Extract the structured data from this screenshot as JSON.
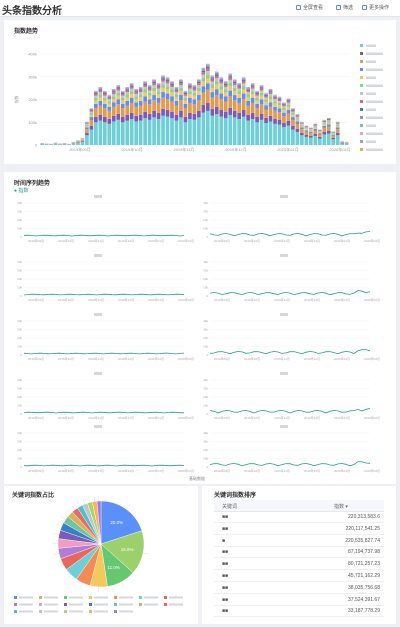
{
  "app": {
    "title": "头条指数分析"
  },
  "toolbar": {
    "save_label": "全屏查看",
    "filter_label": "筛选",
    "more_label": "更多操作"
  },
  "panel1": {
    "title": "指数趋势"
  },
  "panel2": {
    "title": "时间序列趋势",
    "legend_label": "指数",
    "footnote": "基础数据"
  },
  "panel3": {
    "title": "关键词指数占比"
  },
  "panel4": {
    "title": "关键词指数排序",
    "col_keyword": "关键词",
    "col_value": "指数"
  },
  "colors": {
    "accent": "#5b8ff9",
    "line": "#2a9d8f",
    "header_bg": "#ffffff",
    "page_bg": "#eef0f3"
  },
  "chart_data": [
    {
      "type": "bar",
      "title": "指数趋势",
      "ylabel": "指数",
      "y_ticks": [
        "0",
        "100k",
        "200k",
        "300k",
        "400k"
      ],
      "x_ticks": [
        "2019年09月",
        "2019年10月",
        "2019年11月",
        "2019年12月",
        "2020年01月",
        "2020年02月"
      ],
      "series_colors": [
        "#6fcfd6",
        "#7a5bb8",
        "#e39b4f",
        "#5b8ff9",
        "#f5c76a",
        "#8fd18b",
        "#c0c6cf",
        "#e36b6b",
        "#3a7fbf",
        "#b07ed9",
        "#73c2a1",
        "#f09ec0",
        "#9aa5b1",
        "#d8b25a"
      ],
      "stack_values": [
        5,
        4,
        3,
        6,
        4,
        5,
        3,
        8,
        12,
        18,
        60,
        95,
        140,
        150,
        140,
        130,
        145,
        155,
        140,
        150,
        160,
        145,
        150,
        165,
        155,
        170,
        160,
        180,
        175,
        165,
        150,
        170,
        140,
        160,
        155,
        170,
        200,
        210,
        180,
        190,
        175,
        165,
        185,
        170,
        160,
        175,
        150,
        160,
        140,
        155,
        135,
        145,
        130,
        125,
        110,
        120,
        95,
        80,
        60,
        50,
        45,
        55,
        40,
        65,
        70,
        35,
        60,
        10,
        8
      ]
    },
    {
      "type": "line",
      "title": "时间序列趋势",
      "small_multiples": 10,
      "y_ticks": [
        "0",
        "10k",
        "20k",
        "30k",
        "40k"
      ],
      "x_ticks": [
        "2019年09月",
        "2019年10月",
        "2019年11月",
        "2019年12月",
        "2020年01月",
        "2020年02月"
      ]
    },
    {
      "type": "pie",
      "title": "关键词指数占比",
      "slices": [
        {
          "value": 20.0,
          "color": "#5b8ff9",
          "label": "20.0%"
        },
        {
          "value": 16.6,
          "color": "#9bd06a",
          "label": "16.6%"
        },
        {
          "value": 11.0,
          "color": "#65c76f",
          "label": "11.0%"
        },
        {
          "value": 6.5,
          "color": "#f5c85b",
          "label": ""
        },
        {
          "value": 5.6,
          "color": "#f28b54",
          "label": ""
        },
        {
          "value": 5.2,
          "color": "#6fcfd6",
          "label": ""
        },
        {
          "value": 4.5,
          "color": "#e8685e",
          "label": ""
        },
        {
          "value": 4.0,
          "color": "#b07ed9",
          "label": ""
        },
        {
          "value": 3.6,
          "color": "#f09ec0",
          "label": ""
        },
        {
          "value": 3.2,
          "color": "#7a5bb8",
          "label": ""
        },
        {
          "value": 3.0,
          "color": "#3a7fbf",
          "label": ""
        },
        {
          "value": 2.8,
          "color": "#73c2a1",
          "label": ""
        },
        {
          "value": 2.5,
          "color": "#d8b25a",
          "label": ""
        },
        {
          "value": 2.3,
          "color": "#e36b6b",
          "label": ""
        },
        {
          "value": 2.1,
          "color": "#4ec0c6",
          "label": ""
        },
        {
          "value": 2.0,
          "color": "#c0c6cf",
          "label": ""
        },
        {
          "value": 1.9,
          "color": "#a6d96a",
          "label": ""
        },
        {
          "value": 1.7,
          "color": "#fdae61",
          "label": ""
        },
        {
          "value": 1.5,
          "color": "#9e7bd8",
          "label": ""
        }
      ]
    }
  ],
  "table": {
    "rows": [
      {
        "kw": "■■",
        "val": "220,313,583.6"
      },
      {
        "kw": "■■",
        "val": "220,117,541.25"
      },
      {
        "kw": "■",
        "val": "220,535,827.74"
      },
      {
        "kw": "■■",
        "val": "87,194,737.98"
      },
      {
        "kw": "■■",
        "val": "80,721,257.23"
      },
      {
        "kw": "■■",
        "val": "45,721,162.29"
      },
      {
        "kw": "■■",
        "val": "38,035,756.68"
      },
      {
        "kw": "■■",
        "val": "37,524,391.67"
      },
      {
        "kw": "■■",
        "val": "33,187,778.29"
      }
    ]
  }
}
